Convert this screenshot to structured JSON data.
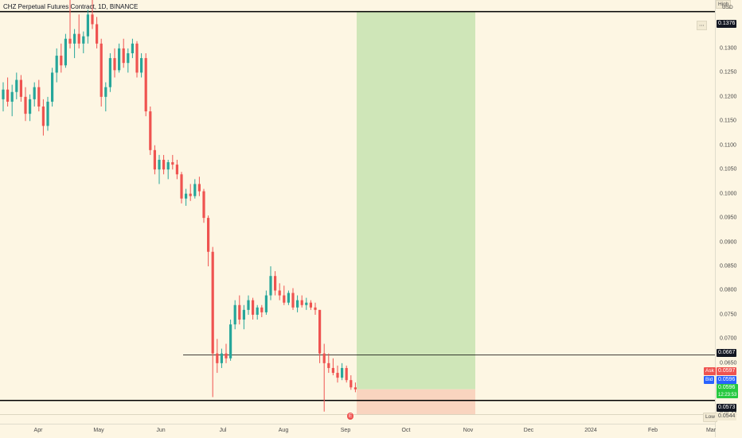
{
  "header": {
    "title": "CHZ Perpetual Futures Contract, 1D, BINANCE",
    "high_label": "High",
    "currency": "USD"
  },
  "price_axis": {
    "ticks": [
      "0.1350",
      "0.1300",
      "0.1250",
      "0.1200",
      "0.1150",
      "0.1100",
      "0.1050",
      "0.1000",
      "0.0950",
      "0.0900",
      "0.0850",
      "0.0800",
      "0.0750",
      "0.0700",
      "0.0650",
      "0.0595",
      "0.0544"
    ],
    "tick_values": [
      0.135,
      0.13,
      0.125,
      0.12,
      0.115,
      0.11,
      0.105,
      0.1,
      0.095,
      0.09,
      0.085,
      0.08,
      0.075,
      0.07,
      0.065,
      0.0595,
      0.0544
    ]
  },
  "price_labels": {
    "high_value": "0.1376",
    "resistance": "0.0667",
    "ask_label": "Ask",
    "ask_value": "0.0597",
    "bid_label": "Bid",
    "bid_value": "0.0596",
    "last_value": "0.0596",
    "countdown": "12:23:53",
    "support": "0.0573",
    "low_label": "Low",
    "low_value": "0.0544"
  },
  "time_axis": {
    "labels": [
      "Apr",
      "May",
      "Jun",
      "Jul",
      "Aug",
      "Sep",
      "Oct",
      "Nov",
      "Dec",
      "2024",
      "Feb",
      "Mar"
    ]
  },
  "levels": {
    "top_line": 0.1376,
    "resistance_line": 0.0667,
    "support_line": 0.0573,
    "low_line": 0.0544
  },
  "position_tool": {
    "entry": 0.0596,
    "target": 0.1376,
    "stop": 0.0544
  },
  "colors": {
    "up": "#26a69a",
    "down": "#ef5350",
    "profit_zone": "#cfe6b8",
    "loss_zone": "#f9d4bf",
    "background": "#fdf6e3",
    "last_price_bg": "#26c940"
  },
  "chart_data": {
    "type": "candlestick",
    "symbol": "CHZ Perpetual Futures Contract",
    "interval": "1D",
    "exchange": "BINANCE",
    "x_labels": [
      "Apr",
      "May",
      "Jun",
      "Jul",
      "Aug",
      "Sep",
      "Oct",
      "Nov",
      "Dec",
      "2024",
      "Feb",
      "Mar"
    ],
    "ylim": [
      0.0525,
      0.14
    ],
    "candles": [
      [
        0.1195,
        0.123,
        0.117,
        0.1215
      ],
      [
        0.1215,
        0.124,
        0.118,
        0.119
      ],
      [
        0.119,
        0.1225,
        0.116,
        0.121
      ],
      [
        0.121,
        0.125,
        0.1195,
        0.1235
      ],
      [
        0.1235,
        0.1245,
        0.119,
        0.12
      ],
      [
        0.12,
        0.122,
        0.115,
        0.1165
      ],
      [
        0.1165,
        0.1205,
        0.115,
        0.1195
      ],
      [
        0.1195,
        0.123,
        0.118,
        0.122
      ],
      [
        0.122,
        0.1235,
        0.117,
        0.118
      ],
      [
        0.118,
        0.1195,
        0.112,
        0.114
      ],
      [
        0.114,
        0.12,
        0.113,
        0.119
      ],
      [
        0.119,
        0.126,
        0.118,
        0.125
      ],
      [
        0.125,
        0.13,
        0.123,
        0.1285
      ],
      [
        0.1285,
        0.131,
        0.125,
        0.1265
      ],
      [
        0.1265,
        0.133,
        0.126,
        0.132
      ],
      [
        0.132,
        0.14,
        0.13,
        0.131
      ],
      [
        0.131,
        0.134,
        0.128,
        0.133
      ],
      [
        0.133,
        0.137,
        0.13,
        0.131
      ],
      [
        0.131,
        0.1335,
        0.129,
        0.1325
      ],
      [
        0.1325,
        0.138,
        0.131,
        0.137
      ],
      [
        0.137,
        0.14,
        0.134,
        0.135
      ],
      [
        0.135,
        0.1365,
        0.13,
        0.131
      ],
      [
        0.131,
        0.132,
        0.118,
        0.12
      ],
      [
        0.12,
        0.123,
        0.117,
        0.122
      ],
      [
        0.122,
        0.129,
        0.121,
        0.128
      ],
      [
        0.128,
        0.13,
        0.124,
        0.1255
      ],
      [
        0.1255,
        0.131,
        0.125,
        0.13
      ],
      [
        0.13,
        0.132,
        0.126,
        0.127
      ],
      [
        0.127,
        0.13,
        0.125,
        0.129
      ],
      [
        0.129,
        0.132,
        0.128,
        0.131
      ],
      [
        0.131,
        0.1315,
        0.124,
        0.125
      ],
      [
        0.125,
        0.129,
        0.124,
        0.128
      ],
      [
        0.128,
        0.129,
        0.116,
        0.117
      ],
      [
        0.117,
        0.118,
        0.108,
        0.109
      ],
      [
        0.109,
        0.11,
        0.104,
        0.105
      ],
      [
        0.105,
        0.108,
        0.102,
        0.107
      ],
      [
        0.107,
        0.108,
        0.104,
        0.105
      ],
      [
        0.105,
        0.107,
        0.103,
        0.1065
      ],
      [
        0.1065,
        0.108,
        0.105,
        0.106
      ],
      [
        0.106,
        0.107,
        0.103,
        0.104
      ],
      [
        0.104,
        0.1045,
        0.098,
        0.099
      ],
      [
        0.099,
        0.101,
        0.0975,
        0.1
      ],
      [
        0.1,
        0.102,
        0.0985,
        0.0995
      ],
      [
        0.0995,
        0.103,
        0.099,
        0.102
      ],
      [
        0.102,
        0.1035,
        0.0995,
        0.1005
      ],
      [
        0.1005,
        0.101,
        0.094,
        0.095
      ],
      [
        0.095,
        0.0955,
        0.085,
        0.088
      ],
      [
        0.088,
        0.089,
        0.058,
        0.067
      ],
      [
        0.067,
        0.07,
        0.063,
        0.065
      ],
      [
        0.065,
        0.068,
        0.064,
        0.067
      ],
      [
        0.067,
        0.069,
        0.065,
        0.066
      ],
      [
        0.066,
        0.074,
        0.0655,
        0.073
      ],
      [
        0.073,
        0.078,
        0.072,
        0.077
      ],
      [
        0.077,
        0.079,
        0.073,
        0.074
      ],
      [
        0.074,
        0.077,
        0.072,
        0.076
      ],
      [
        0.076,
        0.079,
        0.075,
        0.078
      ],
      [
        0.078,
        0.0785,
        0.074,
        0.075
      ],
      [
        0.075,
        0.077,
        0.074,
        0.0765
      ],
      [
        0.0765,
        0.077,
        0.0745,
        0.0755
      ],
      [
        0.0755,
        0.08,
        0.075,
        0.079
      ],
      [
        0.079,
        0.085,
        0.078,
        0.083
      ],
      [
        0.083,
        0.084,
        0.079,
        0.08
      ],
      [
        0.08,
        0.0815,
        0.078,
        0.079
      ],
      [
        0.079,
        0.081,
        0.077,
        0.0775
      ],
      [
        0.0775,
        0.08,
        0.077,
        0.0795
      ],
      [
        0.0795,
        0.0805,
        0.076,
        0.0765
      ],
      [
        0.0765,
        0.079,
        0.0755,
        0.078
      ],
      [
        0.078,
        0.079,
        0.0765,
        0.077
      ],
      [
        0.077,
        0.0785,
        0.076,
        0.0775
      ],
      [
        0.0775,
        0.078,
        0.076,
        0.0765
      ],
      [
        0.0765,
        0.0775,
        0.075,
        0.076
      ],
      [
        0.076,
        0.076,
        0.065,
        0.067
      ],
      [
        0.067,
        0.069,
        0.055,
        0.065
      ],
      [
        0.065,
        0.067,
        0.063,
        0.064
      ],
      [
        0.064,
        0.066,
        0.0625,
        0.063
      ],
      [
        0.063,
        0.0645,
        0.061,
        0.062
      ],
      [
        0.062,
        0.065,
        0.0615,
        0.064
      ],
      [
        0.064,
        0.0645,
        0.061,
        0.0615
      ],
      [
        0.0615,
        0.0625,
        0.0595,
        0.06
      ],
      [
        0.06,
        0.061,
        0.059,
        0.0596
      ]
    ]
  }
}
